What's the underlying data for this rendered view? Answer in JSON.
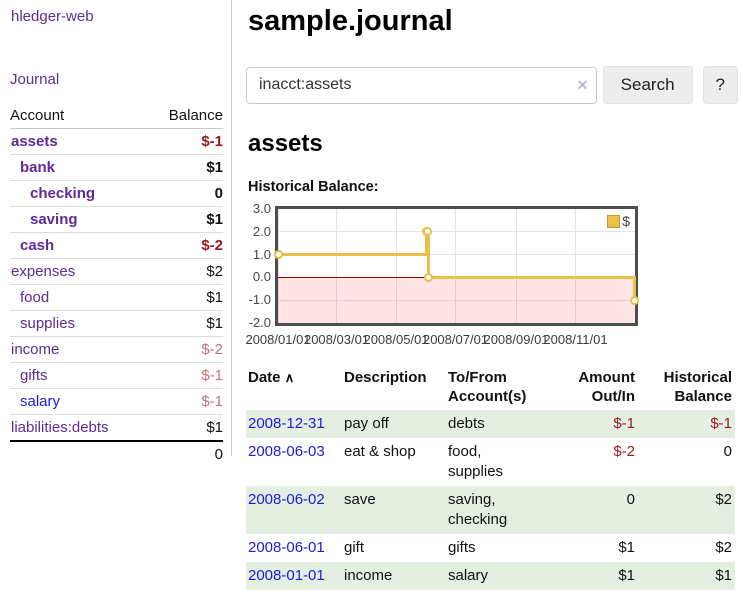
{
  "sidebar": {
    "brand": "hledger-web",
    "nav": {
      "journal": "Journal"
    },
    "accounts_table": {
      "headers": {
        "account": "Account",
        "balance": "Balance"
      },
      "rows": [
        {
          "name": "assets",
          "balance": "$-1"
        },
        {
          "name": "bank",
          "balance": "$1"
        },
        {
          "name": "checking",
          "balance": "0"
        },
        {
          "name": "saving",
          "balance": "$1"
        },
        {
          "name": "cash",
          "balance": "$-2"
        },
        {
          "name": "expenses",
          "balance": "$2"
        },
        {
          "name": "food",
          "balance": "$1"
        },
        {
          "name": "supplies",
          "balance": "$1"
        },
        {
          "name": "income",
          "balance": "$-2"
        },
        {
          "name": "gifts",
          "balance": "$-1"
        },
        {
          "name": "salary",
          "balance": "$-1"
        },
        {
          "name": "liabilities:debts",
          "balance": "$1"
        }
      ],
      "total": "0"
    }
  },
  "main": {
    "title": "sample.journal",
    "search": {
      "value": "inacct:assets",
      "clear_icon": "×",
      "button_label": "Search",
      "help_label": "?"
    },
    "account_heading": "assets",
    "chart_label": "Historical Balance:"
  },
  "chart_data": {
    "type": "line",
    "step": true,
    "title": "Historical Balance",
    "series": [
      {
        "name": "$",
        "points": [
          [
            "2008-01-01",
            1
          ],
          [
            "2008-06-01",
            2
          ],
          [
            "2008-06-02",
            2
          ],
          [
            "2008-06-03",
            0
          ],
          [
            "2008-12-31",
            -1
          ]
        ]
      }
    ],
    "x_ticks": [
      {
        "label": "2008/01/01",
        "date": "2008-01-01"
      },
      {
        "label": "2008/03/01",
        "date": "2008-03-01"
      },
      {
        "label": "2008/05/01",
        "date": "2008-05-01"
      },
      {
        "label": "2008/07/01",
        "date": "2008-07-01"
      },
      {
        "label": "2008/09/01",
        "date": "2008-09-01"
      },
      {
        "label": "2008/11/01",
        "date": "2008-11-01"
      }
    ],
    "y_ticks": [
      3.0,
      2.0,
      1.0,
      0.0,
      -1.0,
      -2.0
    ],
    "xlim": [
      "2008-01-01",
      "2009-01-01"
    ],
    "ylim": [
      -2,
      3
    ],
    "legend": {
      "label": "$",
      "position": "top-right"
    },
    "colors": {
      "line": "#e8c04a",
      "negative_fill": "rgba(255,0,0,0.10)",
      "zero_line": "#8b0000",
      "grid": "#e4e4e4"
    }
  },
  "register": {
    "headers": {
      "date": "Date",
      "sort_icon": "∧",
      "description": "Description",
      "tofrom": "To/From Account(s)",
      "amount": "Amount Out/In",
      "balance": "Historical Balance"
    },
    "rows": [
      {
        "date": "2008-12-31",
        "description": "pay off",
        "accounts": "debts",
        "amount": "$-1",
        "balance": "$-1"
      },
      {
        "date": "2008-06-03",
        "description": "eat & shop",
        "accounts": "food, supplies",
        "amount": "$-2",
        "balance": "0"
      },
      {
        "date": "2008-06-02",
        "description": "save",
        "accounts": "saving, checking",
        "amount": "0",
        "balance": "$2"
      },
      {
        "date": "2008-06-01",
        "description": "gift",
        "accounts": "gifts",
        "amount": "$1",
        "balance": "$2"
      },
      {
        "date": "2008-01-01",
        "description": "income",
        "accounts": "salary",
        "amount": "$1",
        "balance": "$1"
      }
    ]
  }
}
